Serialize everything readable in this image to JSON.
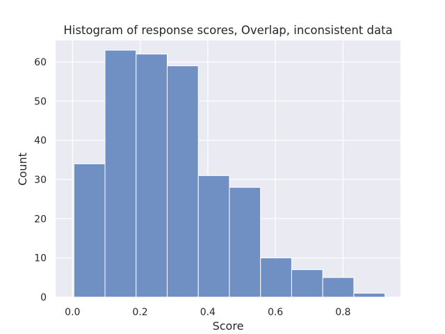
{
  "chart_data": {
    "type": "histogram",
    "title": "Histogram of response scores, Overlap, inconsistent data",
    "xlabel": "Score",
    "ylabel": "Count",
    "bin_edges": [
      0.004,
      0.096,
      0.188,
      0.28,
      0.372,
      0.464,
      0.556,
      0.648,
      0.74,
      0.832,
      0.924
    ],
    "counts": [
      34,
      63,
      62,
      59,
      31,
      28,
      10,
      7,
      5,
      1
    ],
    "xlim": [
      -0.05,
      0.97
    ],
    "ylim": [
      0,
      65.5
    ],
    "xticks": [
      0.0,
      0.2,
      0.4,
      0.6,
      0.8
    ],
    "xtick_labels": [
      "0.0",
      "0.2",
      "0.4",
      "0.6",
      "0.8"
    ],
    "yticks": [
      0,
      10,
      20,
      30,
      40,
      50,
      60
    ],
    "ytick_labels": [
      "0",
      "10",
      "20",
      "30",
      "40",
      "50",
      "60"
    ],
    "grid": true,
    "colors": {
      "background": "#eaeaf2",
      "grid": "#ffffff",
      "bar_fill": "#7090c4",
      "bar_edge": "#ffffff",
      "text": "#262626"
    }
  }
}
